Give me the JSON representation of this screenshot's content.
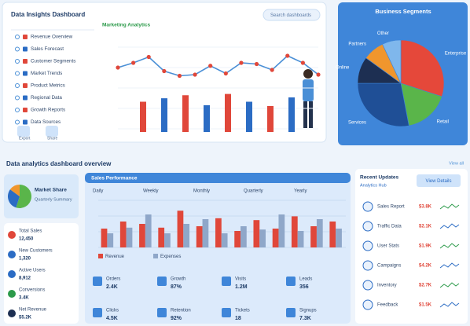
{
  "header": {
    "title": "Data Insights Dashboard",
    "search": "Search dashboards",
    "tab": "Marketing Analytics"
  },
  "top_list": [
    "Revenue Overview",
    "Sales Forecast",
    "Customer Segments",
    "Market Trends",
    "Product Metrics",
    "Regional Data",
    "Growth Reports",
    "Data Sources"
  ],
  "top_buttons": [
    "Export",
    "Share"
  ],
  "line_chart": {
    "type": "line",
    "color": "#4a8fd6",
    "point_color": "#e0473a",
    "ylim": [
      0,
      100
    ],
    "values": [
      52,
      60,
      70,
      46,
      38,
      40,
      55,
      42,
      60,
      58,
      48,
      72,
      60,
      40
    ]
  },
  "top_bars": {
    "type": "bar",
    "ylim": [
      0,
      100
    ],
    "colors": [
      "#e0473a",
      "#2b6cc4"
    ],
    "values": [
      70,
      78,
      85,
      62,
      88,
      70,
      60,
      80
    ]
  },
  "pie": {
    "type": "pie",
    "title": "Business Segments",
    "labels": [
      "Enterprise",
      "Retail",
      "Services",
      "Online",
      "Partners",
      "Other"
    ],
    "values": [
      30,
      17,
      28,
      10,
      8,
      7
    ],
    "colors": [
      "#e5483a",
      "#5ab54a",
      "#1f4f96",
      "#1d2f52",
      "#f0962d",
      "#7fb7ec"
    ]
  },
  "section_title": "Data analytics dashboard overview",
  "section_link": "View all",
  "mini_card": {
    "title": "Market Share",
    "subtitle": "Quarterly Summary",
    "pie_values": [
      55,
      30,
      15
    ],
    "pie_colors": [
      "#5ab54a",
      "#2b6cc4",
      "#f0962d"
    ]
  },
  "left_list": [
    {
      "label": "Total Sales",
      "value": "12,450"
    },
    {
      "label": "New Customers",
      "value": "1,320"
    },
    {
      "label": "Active Users",
      "value": "8,912"
    },
    {
      "label": "Conversions",
      "value": "3.4K"
    },
    {
      "label": "Net Revenue",
      "value": "$5.2K"
    }
  ],
  "bar_panel": {
    "type": "bar",
    "title": "Sales Performance",
    "tabs": [
      "Daily",
      "Weekly",
      "Monthly",
      "Quarterly",
      "Yearly"
    ],
    "ylim": [
      0,
      100
    ],
    "series": [
      {
        "name": "Revenue",
        "color": "#e0473a",
        "values": [
          40,
          55,
          50,
          42,
          78,
          45,
          62,
          35,
          58,
          40,
          66,
          45,
          55
        ]
      },
      {
        "name": "Expenses",
        "color": "#8fa7c9",
        "values": [
          30,
          42,
          70,
          30,
          50,
          60,
          30,
          45,
          38,
          70,
          35,
          60,
          40
        ]
      }
    ]
  },
  "stats": [
    {
      "label": "Orders",
      "value": "2.4K"
    },
    {
      "label": "Growth",
      "value": "87%"
    },
    {
      "label": "Visits",
      "value": "1.2M"
    },
    {
      "label": "Leads",
      "value": "356"
    },
    {
      "label": "Clicks",
      "value": "4.5K"
    },
    {
      "label": "Retention",
      "value": "92%"
    },
    {
      "label": "Tickets",
      "value": "18"
    },
    {
      "label": "Signups",
      "value": "7.3K"
    }
  ],
  "right_list": {
    "title": "Recent Updates",
    "subtitle": "Analytics Hub",
    "button": "View Details",
    "items": [
      {
        "name": "Sales Report",
        "value": "$3.8K"
      },
      {
        "name": "Traffic Data",
        "value": "$2.1K"
      },
      {
        "name": "User Stats",
        "value": "$1.9K"
      },
      {
        "name": "Campaigns",
        "value": "$4.2K"
      },
      {
        "name": "Inventory",
        "value": "$2.7K"
      },
      {
        "name": "Feedback",
        "value": "$1.5K"
      }
    ]
  }
}
